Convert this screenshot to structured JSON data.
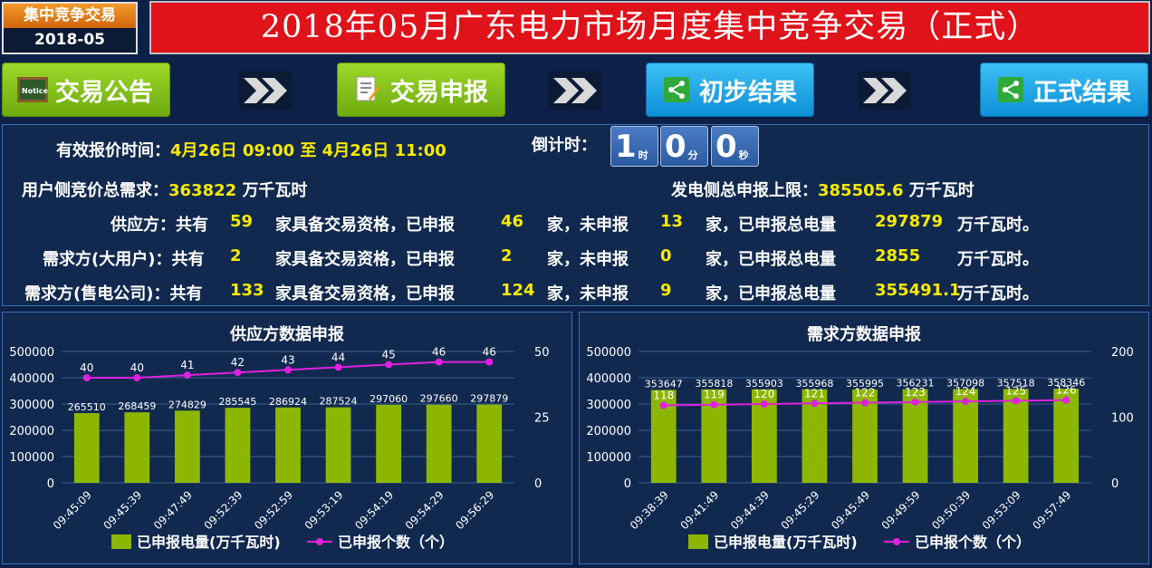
{
  "header": {
    "badge_top": "集中竞争交易",
    "badge_bottom": "2018-05",
    "title": "2018年05月广东电力市场月度集中竞争交易（正式）"
  },
  "nav": [
    {
      "label": "交易公告",
      "icon": "notice-board-icon"
    },
    {
      "label": "交易申报",
      "icon": "document-edit-icon"
    },
    {
      "label": "初步结果",
      "icon": "share-icon"
    },
    {
      "label": "正式结果",
      "icon": "share-icon"
    }
  ],
  "info": {
    "valid_time_label": "有效报价时间：",
    "valid_time_value": "4月26日 09:00 至 4月26日 11:00",
    "countdown_label": "倒计时：",
    "countdown": [
      {
        "num": "1",
        "unit": "时"
      },
      {
        "num": "0",
        "unit": "分"
      },
      {
        "num": "0",
        "unit": "秒"
      }
    ],
    "user_demand_label": "用户侧竞价总需求：",
    "user_demand_value": "363822",
    "user_demand_unit": "万千瓦时",
    "gen_limit_label": "发电侧总申报上限：",
    "gen_limit_value": "385505.6",
    "gen_limit_unit": "万千瓦时",
    "rows": [
      {
        "name": "供应方：共有",
        "total": "59",
        "t1": "家具备交易资格，已申报",
        "declared": "46",
        "t2": "家，未申报",
        "undeclared": "13",
        "t3": "家，已申报总电量",
        "energy": "297879",
        "t4": "万千瓦时。"
      },
      {
        "name": "需求方(大用户)：共有",
        "total": "2",
        "t1": "家具备交易资格，已申报",
        "declared": "2",
        "t2": "家，未申报",
        "undeclared": "0",
        "t3": "家，已申报总电量",
        "energy": "2855",
        "t4": "万千瓦时。"
      },
      {
        "name": "需求方(售电公司)：共有",
        "total": "133",
        "t1": "家具备交易资格，已申报",
        "declared": "124",
        "t2": "家，未申报",
        "undeclared": "9",
        "t3": "家，已申报总电量",
        "energy": "355491.1",
        "t4": "万千瓦时。"
      }
    ]
  },
  "colors": {
    "bar": "#8db600",
    "line": "#e020e0",
    "value_yellow": "#f7ea00",
    "title_red": "#e0121a"
  },
  "chart_data": [
    {
      "type": "bar",
      "title": "供应方数据申报",
      "categories": [
        "09:45:09",
        "09:45:39",
        "09:47:49",
        "09:52:39",
        "09:52:59",
        "09:53:19",
        "09:54:19",
        "09:54:29",
        "09:56:29"
      ],
      "series": [
        {
          "name": "已申报电量(万千瓦时)",
          "type": "bar",
          "axis": "left",
          "values": [
            265510,
            268459,
            274829,
            285545,
            286924,
            287524,
            297060,
            297660,
            297879
          ]
        },
        {
          "name": "已申报个数（个）",
          "type": "line",
          "axis": "right",
          "values": [
            40,
            40,
            41,
            42,
            43,
            44,
            45,
            46,
            46
          ]
        }
      ],
      "y_left": {
        "min": 0,
        "max": 500000,
        "ticks": [
          0,
          100000,
          200000,
          300000,
          400000,
          500000
        ]
      },
      "y_right": {
        "min": 0,
        "max": 50,
        "ticks": [
          0,
          25,
          50
        ]
      },
      "legend": "bottom"
    },
    {
      "type": "bar",
      "title": "需求方数据申报",
      "categories": [
        "09:38:39",
        "09:41:49",
        "09:44:39",
        "09:45:29",
        "09:45:49",
        "09:49:59",
        "09:50:39",
        "09:53:09",
        "09:57:49"
      ],
      "series": [
        {
          "name": "已申报电量(万千瓦时)",
          "type": "bar",
          "axis": "left",
          "values": [
            353647,
            355818,
            355903,
            355968,
            355995,
            356231,
            357098,
            357518,
            358346
          ]
        },
        {
          "name": "已申报个数（个）",
          "type": "line",
          "axis": "right",
          "values": [
            118,
            119,
            120,
            121,
            122,
            123,
            124,
            125,
            126
          ]
        }
      ],
      "y_left": {
        "min": 0,
        "max": 500000,
        "ticks": [
          0,
          100000,
          200000,
          300000,
          400000,
          500000
        ]
      },
      "y_right": {
        "min": 0,
        "max": 200,
        "ticks": [
          0,
          100,
          200
        ]
      },
      "legend": "bottom"
    }
  ]
}
